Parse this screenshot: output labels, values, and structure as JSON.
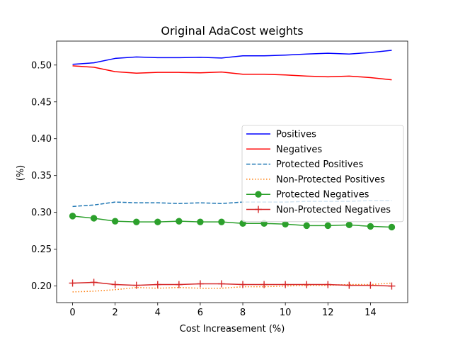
{
  "chart_data": {
    "type": "line",
    "title": "Original AdaCost weights",
    "xlabel": "Cost Increasement (%)",
    "ylabel": "(%)",
    "xlim": [
      -0.75,
      15.75
    ],
    "ylim": [
      0.1775,
      0.5325
    ],
    "xticks": [
      0,
      2,
      4,
      6,
      8,
      10,
      12,
      14
    ],
    "yticks": [
      0.2,
      0.25,
      0.3,
      0.35,
      0.4,
      0.45,
      0.5
    ],
    "grid": false,
    "legend_position": "center-right",
    "x": [
      0,
      1,
      2,
      3,
      4,
      5,
      6,
      7,
      8,
      9,
      10,
      11,
      12,
      13,
      14,
      15
    ],
    "series": [
      {
        "name": "Positives",
        "color": "#0000ff",
        "style": "solid",
        "marker": "none",
        "values": [
          0.501,
          0.503,
          0.509,
          0.511,
          0.51,
          0.51,
          0.5105,
          0.5095,
          0.5125,
          0.5125,
          0.5135,
          0.515,
          0.516,
          0.515,
          0.517,
          0.52
        ]
      },
      {
        "name": "Negatives",
        "color": "#ff0000",
        "style": "solid",
        "marker": "none",
        "values": [
          0.499,
          0.497,
          0.491,
          0.489,
          0.49,
          0.49,
          0.4895,
          0.4905,
          0.4875,
          0.4875,
          0.4865,
          0.485,
          0.484,
          0.485,
          0.483,
          0.48
        ]
      },
      {
        "name": "Protected Positives",
        "color": "#1f77b4",
        "style": "dashed",
        "marker": "none",
        "values": [
          0.308,
          0.31,
          0.314,
          0.313,
          0.313,
          0.312,
          0.313,
          0.312,
          0.314,
          0.314,
          0.314,
          0.315,
          0.315,
          0.315,
          0.316,
          0.316
        ]
      },
      {
        "name": "Non-Protected Positives",
        "color": "#ff7f0e",
        "style": "dotted",
        "marker": "none",
        "values": [
          0.192,
          0.193,
          0.195,
          0.198,
          0.197,
          0.198,
          0.197,
          0.197,
          0.199,
          0.199,
          0.2,
          0.201,
          0.201,
          0.202,
          0.202,
          0.204
        ]
      },
      {
        "name": "Protected Negatives",
        "color": "#2ca02c",
        "style": "solid",
        "marker": "circle",
        "values": [
          0.295,
          0.292,
          0.288,
          0.287,
          0.287,
          0.288,
          0.287,
          0.287,
          0.285,
          0.285,
          0.284,
          0.282,
          0.282,
          0.283,
          0.281,
          0.28
        ]
      },
      {
        "name": "Non-Protected Negatives",
        "color": "#d62728",
        "style": "solid",
        "marker": "plus",
        "values": [
          0.204,
          0.205,
          0.202,
          0.201,
          0.202,
          0.202,
          0.203,
          0.203,
          0.202,
          0.202,
          0.202,
          0.202,
          0.202,
          0.201,
          0.201,
          0.2
        ]
      }
    ]
  }
}
